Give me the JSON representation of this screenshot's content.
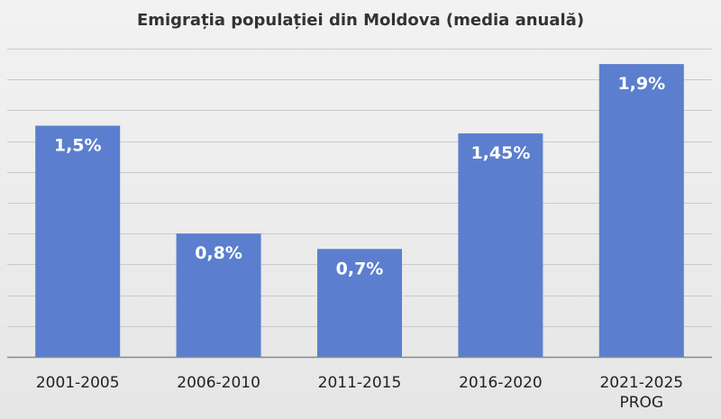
{
  "chart_data": {
    "type": "bar",
    "title": "Emigrația populației din Moldova (media anuală)",
    "categories": [
      "2001-2005",
      "2006-2010",
      "2011-2015",
      "2016-2020",
      "2021-2025 PROG"
    ],
    "category_lines": [
      [
        "2001-2005"
      ],
      [
        "2006-2010"
      ],
      [
        "2011-2015"
      ],
      [
        "2016-2020"
      ],
      [
        "2021-2025",
        "PROG"
      ]
    ],
    "values": [
      1.5,
      0.8,
      0.7,
      1.45,
      1.9
    ],
    "data_labels": [
      "1,5%",
      "0,8%",
      "0,7%",
      "1,45%",
      "1,9%"
    ],
    "unit": "%",
    "ylim": [
      0,
      2.0
    ],
    "grid": true,
    "grid_step": 0.2,
    "legend": false,
    "bar_color": "#5b7fce"
  }
}
